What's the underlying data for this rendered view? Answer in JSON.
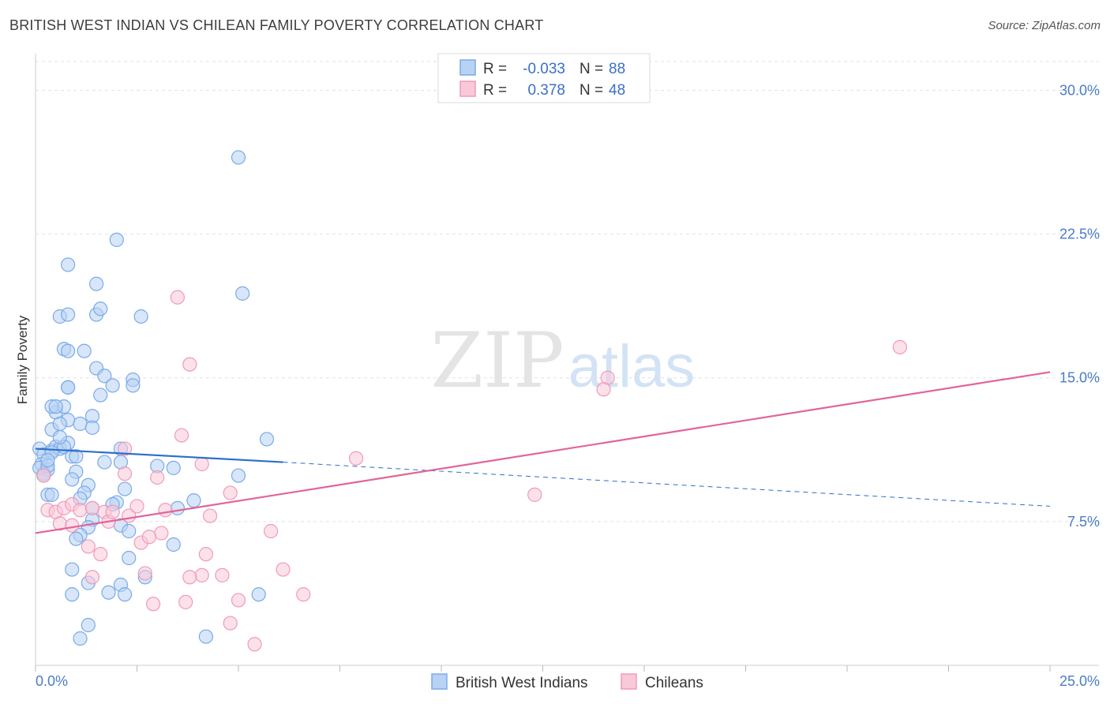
{
  "title": "BRITISH WEST INDIAN VS CHILEAN FAMILY POVERTY CORRELATION CHART",
  "source": "Source: ZipAtlas.com",
  "watermark": {
    "zip": "ZIP",
    "atlas": "atlas"
  },
  "legend": {
    "rows": [
      {
        "r_label": "R =",
        "r_value": "-0.033",
        "n_label": "N =",
        "n_value": "88",
        "color": "#7aaae8",
        "fill": "#b8d2f4"
      },
      {
        "r_label": "R =",
        "r_value": "0.378",
        "n_label": "N =",
        "n_value": "48",
        "color": "#f09ab8",
        "fill": "#f9c9d9"
      }
    ]
  },
  "bottom_legend": [
    {
      "label": "British West Indians",
      "color": "#7aaae8",
      "fill": "#b8d2f4"
    },
    {
      "label": "Chileans",
      "color": "#f09ab8",
      "fill": "#f9c9d9"
    }
  ],
  "chart_data": {
    "type": "scatter",
    "title": "BRITISH WEST INDIAN VS CHILEAN FAMILY POVERTY CORRELATION CHART",
    "xlabel": "",
    "ylabel": "Family Poverty",
    "xlim": [
      0,
      25
    ],
    "ylim": [
      0,
      31.5
    ],
    "x_tick_labels": [
      "0.0%",
      "25.0%"
    ],
    "y_ticks": [
      7.5,
      15.0,
      22.5,
      30.0
    ],
    "y_tick_labels": [
      "7.5%",
      "15.0%",
      "22.5%",
      "30.0%"
    ],
    "grid": true,
    "series": [
      {
        "name": "British West Indians",
        "color": "#7aaae8",
        "fill": "#b8d2f4",
        "trend": {
          "x": [
            0,
            6.1
          ],
          "y": [
            11.3,
            10.6
          ],
          "dashed_to": [
            25,
            8.3
          ],
          "color": "#2c6fce"
        },
        "points": [
          [
            0.1,
            11.3
          ],
          [
            0.2,
            11.0
          ],
          [
            0.15,
            10.5
          ],
          [
            0.3,
            10.2
          ],
          [
            0.2,
            10.0
          ],
          [
            0.1,
            10.3
          ],
          [
            0.4,
            11.2
          ],
          [
            0.3,
            10.4
          ],
          [
            0.5,
            11.4
          ],
          [
            0.6,
            11.3
          ],
          [
            0.8,
            11.6
          ],
          [
            0.7,
            11.4
          ],
          [
            0.4,
            12.3
          ],
          [
            0.6,
            11.9
          ],
          [
            0.5,
            13.2
          ],
          [
            0.7,
            13.5
          ],
          [
            0.4,
            13.5
          ],
          [
            0.5,
            13.5
          ],
          [
            0.8,
            12.8
          ],
          [
            0.6,
            12.6
          ],
          [
            1.1,
            12.6
          ],
          [
            1.4,
            13.0
          ],
          [
            1.4,
            12.4
          ],
          [
            0.8,
            14.5
          ],
          [
            0.8,
            14.5
          ],
          [
            0.7,
            16.5
          ],
          [
            0.8,
            16.4
          ],
          [
            1.2,
            16.4
          ],
          [
            1.5,
            15.5
          ],
          [
            1.7,
            15.1
          ],
          [
            1.6,
            14.1
          ],
          [
            1.9,
            14.6
          ],
          [
            2.4,
            14.9
          ],
          [
            2.4,
            14.6
          ],
          [
            0.6,
            18.2
          ],
          [
            0.8,
            18.3
          ],
          [
            1.5,
            18.3
          ],
          [
            1.6,
            18.6
          ],
          [
            2.6,
            18.2
          ],
          [
            1.5,
            19.9
          ],
          [
            0.8,
            20.9
          ],
          [
            2.0,
            22.2
          ],
          [
            5.0,
            26.5
          ],
          [
            5.1,
            19.4
          ],
          [
            0.4,
            11.1
          ],
          [
            0.9,
            10.9
          ],
          [
            1.0,
            10.9
          ],
          [
            1.7,
            10.6
          ],
          [
            2.1,
            10.6
          ],
          [
            2.1,
            11.3
          ],
          [
            3.0,
            10.4
          ],
          [
            3.4,
            10.3
          ],
          [
            0.3,
            10.7
          ],
          [
            1.0,
            10.1
          ],
          [
            0.9,
            9.7
          ],
          [
            1.3,
            9.4
          ],
          [
            1.2,
            9.0
          ],
          [
            1.1,
            8.7
          ],
          [
            0.3,
            8.9
          ],
          [
            0.4,
            8.9
          ],
          [
            2.2,
            9.2
          ],
          [
            2.0,
            8.5
          ],
          [
            1.9,
            8.4
          ],
          [
            1.4,
            8.2
          ],
          [
            3.5,
            8.2
          ],
          [
            3.9,
            8.6
          ],
          [
            1.4,
            7.6
          ],
          [
            2.1,
            7.3
          ],
          [
            1.3,
            7.2
          ],
          [
            2.3,
            7.0
          ],
          [
            1.1,
            6.8
          ],
          [
            1.0,
            6.6
          ],
          [
            2.3,
            5.6
          ],
          [
            3.4,
            6.3
          ],
          [
            0.9,
            5.0
          ],
          [
            2.7,
            4.6
          ],
          [
            1.3,
            4.3
          ],
          [
            2.1,
            4.2
          ],
          [
            1.8,
            3.8
          ],
          [
            0.9,
            3.7
          ],
          [
            2.2,
            3.7
          ],
          [
            5.5,
            3.7
          ],
          [
            1.3,
            2.1
          ],
          [
            1.1,
            1.4
          ],
          [
            4.2,
            1.5
          ],
          [
            5.7,
            11.8
          ],
          [
            5.0,
            9.9
          ],
          [
            0.2,
            9.9
          ]
        ]
      },
      {
        "name": "Chileans",
        "color": "#f09ab8",
        "fill": "#f9c9d9",
        "trend": {
          "x": [
            0,
            25
          ],
          "y": [
            6.9,
            15.3
          ],
          "color": "#e0659a"
        },
        "points": [
          [
            0.2,
            9.9
          ],
          [
            0.3,
            8.1
          ],
          [
            0.5,
            8.0
          ],
          [
            0.7,
            8.2
          ],
          [
            0.9,
            8.4
          ],
          [
            1.1,
            8.1
          ],
          [
            1.4,
            8.2
          ],
          [
            1.7,
            8.0
          ],
          [
            2.3,
            7.8
          ],
          [
            2.5,
            8.3
          ],
          [
            3.2,
            8.1
          ],
          [
            4.3,
            7.8
          ],
          [
            0.6,
            7.4
          ],
          [
            0.9,
            7.3
          ],
          [
            1.8,
            7.5
          ],
          [
            1.9,
            8.0
          ],
          [
            2.2,
            10.0
          ],
          [
            3.0,
            9.8
          ],
          [
            4.1,
            10.5
          ],
          [
            4.8,
            9.0
          ],
          [
            5.8,
            7.0
          ],
          [
            3.1,
            6.9
          ],
          [
            2.6,
            6.4
          ],
          [
            1.3,
            6.2
          ],
          [
            1.6,
            5.8
          ],
          [
            2.8,
            6.7
          ],
          [
            4.2,
            5.8
          ],
          [
            2.7,
            4.8
          ],
          [
            4.1,
            4.7
          ],
          [
            4.6,
            4.7
          ],
          [
            3.8,
            4.6
          ],
          [
            1.4,
            4.6
          ],
          [
            2.9,
            3.2
          ],
          [
            3.7,
            3.3
          ],
          [
            5.0,
            3.4
          ],
          [
            6.6,
            3.7
          ],
          [
            6.1,
            5.0
          ],
          [
            4.8,
            2.2
          ],
          [
            5.4,
            1.1
          ],
          [
            3.6,
            12.0
          ],
          [
            2.2,
            11.3
          ],
          [
            3.8,
            15.7
          ],
          [
            3.5,
            19.2
          ],
          [
            7.9,
            10.8
          ],
          [
            12.3,
            8.9
          ],
          [
            14.1,
            15.0
          ],
          [
            14.0,
            14.4
          ],
          [
            21.3,
            16.6
          ]
        ]
      }
    ]
  }
}
